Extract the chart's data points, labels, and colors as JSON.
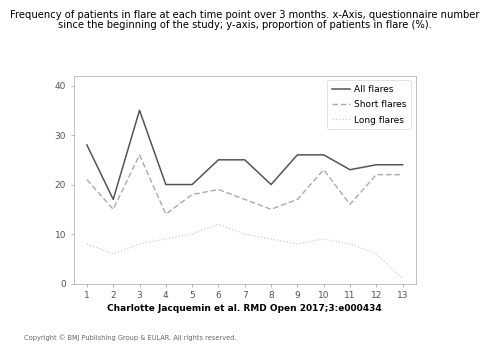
{
  "title_line1": "Frequency of patients in flare at each time point over 3 months. x-Axis, questionnaire number",
  "title_line2": "since the beginning of the study; y-axis, proportion of patients in flare (%).",
  "x": [
    1,
    2,
    3,
    4,
    5,
    6,
    7,
    8,
    9,
    10,
    11,
    12,
    13
  ],
  "all_flares": [
    28,
    17,
    35,
    20,
    20,
    25,
    25,
    20,
    26,
    26,
    23,
    24,
    24
  ],
  "short_flares": [
    21,
    15,
    26,
    14,
    18,
    19,
    17,
    15,
    17,
    23,
    16,
    22,
    22
  ],
  "long_flares": [
    8,
    6,
    8,
    9,
    10,
    12,
    10,
    9,
    8,
    9,
    8,
    6,
    1
  ],
  "ylim": [
    0,
    42
  ],
  "xlim": [
    0.5,
    13.5
  ],
  "yticks": [
    0,
    10,
    20,
    30,
    40
  ],
  "xticks": [
    1,
    2,
    3,
    4,
    5,
    6,
    7,
    8,
    9,
    10,
    11,
    12,
    13
  ],
  "legend_labels": [
    "All flares",
    "Short flares",
    "Long flares"
  ],
  "all_color": "#555555",
  "short_color": "#aaaaaa",
  "long_color": "#cccccc",
  "citation": "Charlotte Jacquemin et al. RMD Open 2017;3:e000434",
  "copyright": "Copyright © BMJ Publishing Group & EULAR. All rights reserved.",
  "rmd_green": "#1e6b3c"
}
